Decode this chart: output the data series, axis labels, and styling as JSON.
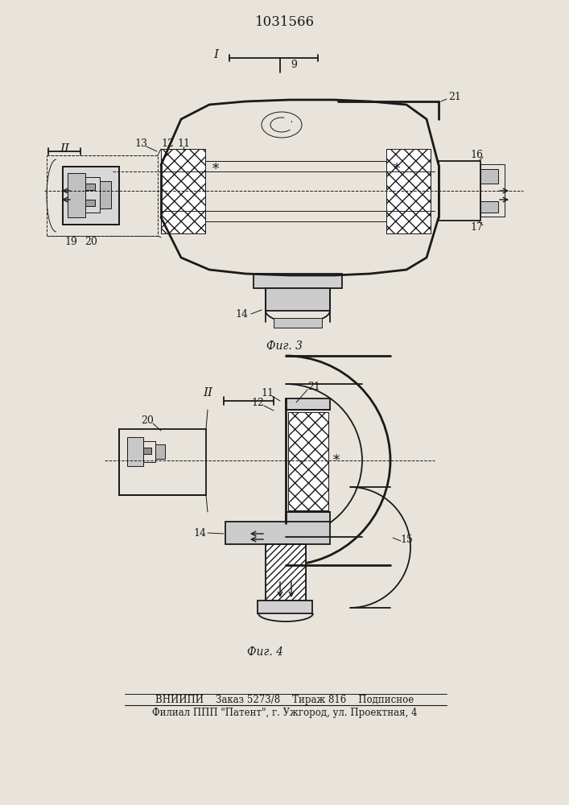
{
  "title": "1031566",
  "fig3_label": "Фиг. 3",
  "fig4_label": "Фиг. 4",
  "footer_line1": "ВНИИПИ    Заказ 5273/8    Тираж 816    Подписное",
  "footer_line2": "Филиал ППП \"Патент\", г. Ужгород, ул. Проектная, 4",
  "bg_color": "#e8e4dc",
  "line_color": "#1a1a1a"
}
